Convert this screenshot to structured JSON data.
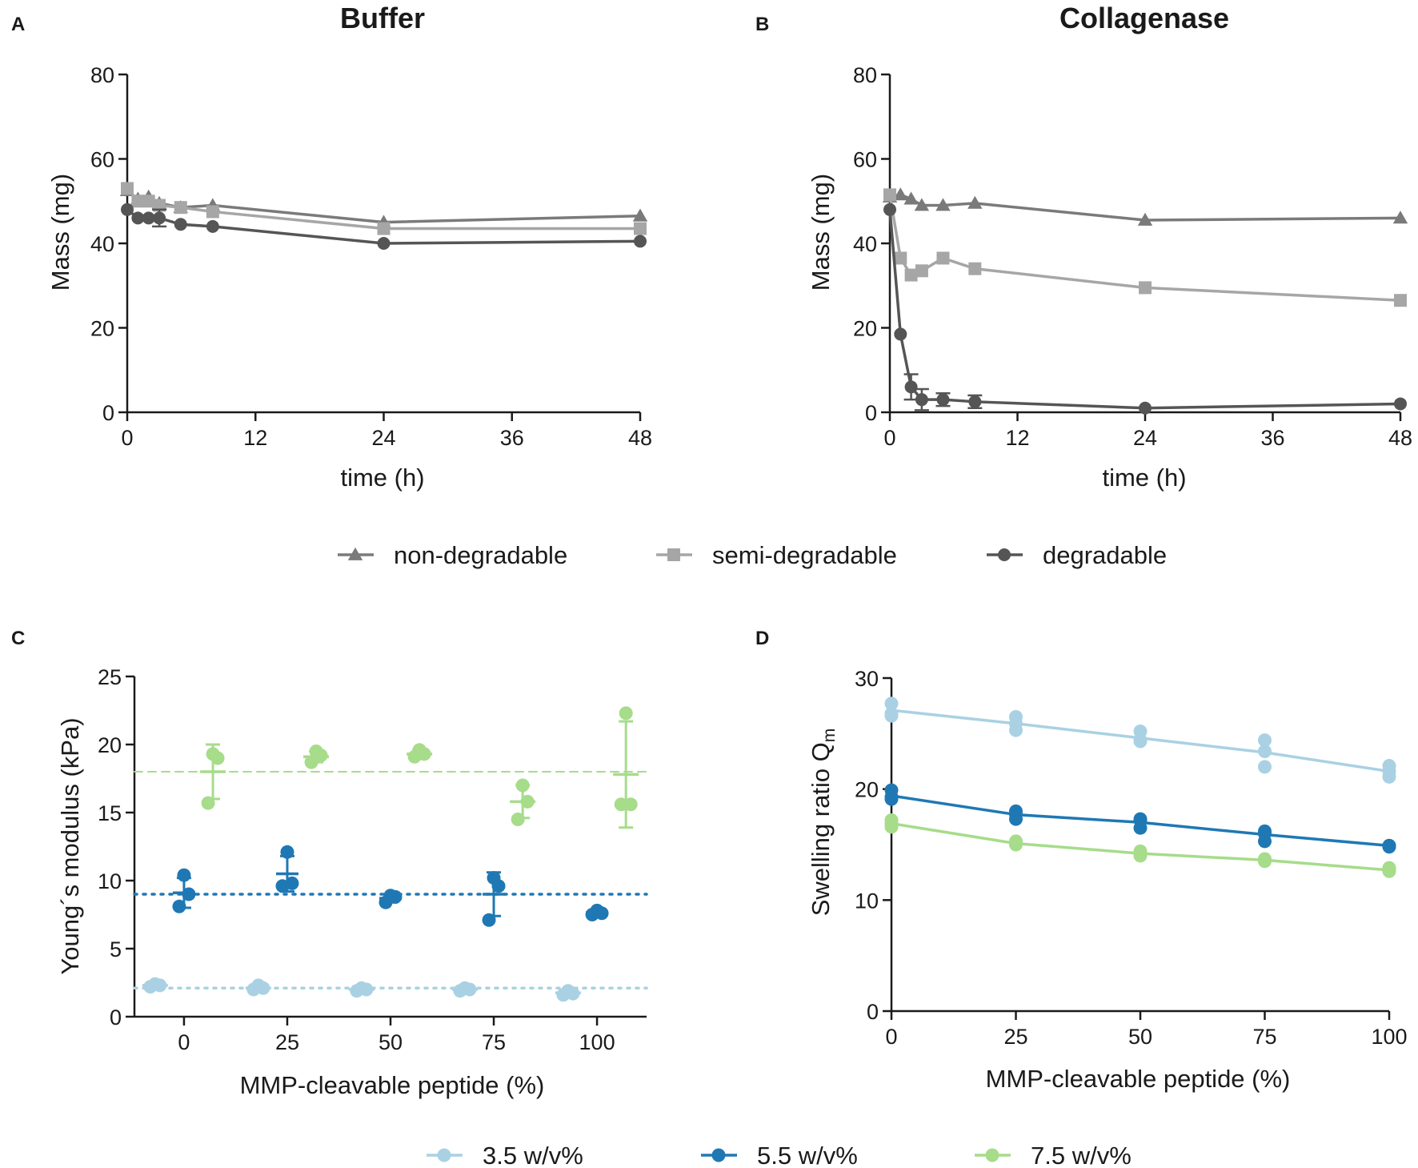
{
  "figure": {
    "legend_top": [
      {
        "label": "non-degradable",
        "color": "#7a7a7a",
        "marker": "triangle"
      },
      {
        "label": "semi-degradable",
        "color": "#a6a6a6",
        "marker": "square"
      },
      {
        "label": "degradable",
        "color": "#555555",
        "marker": "circle"
      }
    ],
    "legend_bottom": [
      {
        "label": "3.5 w/v%",
        "color": "#a9d1e3"
      },
      {
        "label": "5.5 w/v%",
        "color": "#1f78b4"
      },
      {
        "label": "7.5 w/v%",
        "color": "#a6dc8a"
      }
    ]
  },
  "chart_data": [
    {
      "panel": "A",
      "type": "line",
      "title": "Buffer",
      "xlabel": "time (h)",
      "ylabel": "Mass (mg)",
      "xlim": [
        0,
        48
      ],
      "ylim": [
        0,
        80
      ],
      "xticks": [
        0,
        12,
        24,
        36,
        48
      ],
      "yticks": [
        0,
        20,
        40,
        60,
        80
      ],
      "series": [
        {
          "name": "non-degradable",
          "color": "#7a7a7a",
          "marker": "triangle",
          "x": [
            0,
            1,
            2,
            3,
            5,
            8,
            24,
            48
          ],
          "y": [
            52.5,
            50.5,
            51,
            49.5,
            48.5,
            49,
            45,
            46.5
          ]
        },
        {
          "name": "semi-degradable",
          "color": "#a6a6a6",
          "marker": "square",
          "x": [
            0,
            1,
            2,
            3,
            5,
            8,
            24,
            48
          ],
          "y": [
            53,
            50,
            50,
            49,
            48.5,
            47.5,
            43.5,
            43.5
          ]
        },
        {
          "name": "degradable",
          "color": "#555555",
          "marker": "circle",
          "x": [
            0,
            1,
            2,
            3,
            5,
            8,
            24,
            48
          ],
          "y": [
            48,
            46,
            46,
            46,
            44.5,
            44,
            40,
            40.5
          ],
          "err": [
            0,
            0,
            0,
            2,
            0,
            0,
            0,
            0
          ]
        }
      ]
    },
    {
      "panel": "B",
      "type": "line",
      "title": "Collagenase",
      "xlabel": "time (h)",
      "ylabel": "Mass (mg)",
      "xlim": [
        0,
        48
      ],
      "ylim": [
        0,
        80
      ],
      "xticks": [
        0,
        12,
        24,
        36,
        48
      ],
      "yticks": [
        0,
        20,
        40,
        60,
        80
      ],
      "series": [
        {
          "name": "non-degradable",
          "color": "#7a7a7a",
          "marker": "triangle",
          "x": [
            0,
            1,
            2,
            3,
            5,
            8,
            24,
            48
          ],
          "y": [
            51,
            51.5,
            50.5,
            49,
            49,
            49.5,
            45.5,
            46
          ]
        },
        {
          "name": "semi-degradable",
          "color": "#a6a6a6",
          "marker": "square",
          "x": [
            0,
            1,
            2,
            3,
            5,
            8,
            24,
            48
          ],
          "y": [
            51.5,
            36.5,
            32.5,
            33.5,
            36.5,
            34,
            29.5,
            26.5
          ]
        },
        {
          "name": "degradable",
          "color": "#555555",
          "marker": "circle",
          "x": [
            0,
            1,
            2,
            3,
            5,
            8,
            24,
            48
          ],
          "y": [
            48,
            18.5,
            6,
            3,
            3,
            2.5,
            1,
            2
          ],
          "err": [
            0,
            0,
            3,
            2.5,
            1.5,
            1.5,
            0,
            0
          ]
        }
      ]
    },
    {
      "panel": "C",
      "type": "scatter",
      "xlabel": "MMP-cleavable peptide (%)",
      "ylabel": "Young´s modulus (kPa)",
      "xlim": [
        -12,
        112
      ],
      "ylim": [
        0,
        25
      ],
      "xticks": [
        0,
        25,
        50,
        75,
        100
      ],
      "yticks": [
        0,
        5,
        10,
        15,
        20,
        25
      ],
      "series": [
        {
          "name": "3.5 w/v%",
          "color": "#a9d1e3",
          "offset": -7,
          "ref_line": 2.1,
          "groups": [
            {
              "x": 0,
              "points": [
                2.2,
                2.3,
                2.4
              ],
              "mean": 2.3,
              "sd": 0.1
            },
            {
              "x": 25,
              "points": [
                2.0,
                2.1,
                2.3
              ],
              "mean": 2.1,
              "sd": 0.15
            },
            {
              "x": 50,
              "points": [
                1.9,
                2.0,
                2.1
              ],
              "mean": 2.0,
              "sd": 0.1
            },
            {
              "x": 75,
              "points": [
                1.9,
                2.0,
                2.1
              ],
              "mean": 2.0,
              "sd": 0.1
            },
            {
              "x": 100,
              "points": [
                1.6,
                1.7,
                1.9
              ],
              "mean": 1.75,
              "sd": 0.15
            }
          ]
        },
        {
          "name": "5.5 w/v%",
          "color": "#1f78b4",
          "offset": 0,
          "ref_line": 9.0,
          "groups": [
            {
              "x": 0,
              "points": [
                8.1,
                9.0,
                10.4
              ],
              "mean": 9.1,
              "sd": 1.1
            },
            {
              "x": 25,
              "points": [
                9.6,
                9.8,
                12.1
              ],
              "mean": 10.5,
              "sd": 1.3
            },
            {
              "x": 50,
              "points": [
                8.4,
                8.8,
                8.9
              ],
              "mean": 8.7,
              "sd": 0.3
            },
            {
              "x": 75,
              "points": [
                7.1,
                9.6,
                10.2
              ],
              "mean": 9.0,
              "sd": 1.6
            },
            {
              "x": 100,
              "points": [
                7.5,
                7.6,
                7.8
              ],
              "mean": 7.65,
              "sd": 0.15
            }
          ]
        },
        {
          "name": "7.5 w/v%",
          "color": "#a6dc8a",
          "offset": 7,
          "ref_line": 18.0,
          "groups": [
            {
              "x": 0,
              "points": [
                15.7,
                19.0,
                19.3
              ],
              "mean": 18.0,
              "sd": 2.0
            },
            {
              "x": 25,
              "points": [
                18.7,
                19.2,
                19.5
              ],
              "mean": 19.1,
              "sd": 0.4
            },
            {
              "x": 50,
              "points": [
                19.1,
                19.3,
                19.6
              ],
              "mean": 19.3,
              "sd": 0.3
            },
            {
              "x": 75,
              "points": [
                14.5,
                15.8,
                17.0
              ],
              "mean": 15.8,
              "sd": 1.2
            },
            {
              "x": 100,
              "points": [
                15.6,
                15.6,
                22.3
              ],
              "mean": 17.8,
              "sd": 3.9
            }
          ]
        }
      ]
    },
    {
      "panel": "D",
      "type": "line",
      "xlabel": "MMP-cleavable peptide (%)",
      "ylabel_main": "Swelling ratio Q",
      "ylabel_sub": "m",
      "xlim": [
        0,
        100
      ],
      "ylim": [
        0,
        30
      ],
      "xticks": [
        0,
        25,
        50,
        75,
        100
      ],
      "yticks": [
        0,
        10,
        20,
        30
      ],
      "series": [
        {
          "name": "3.5 w/v%",
          "color": "#a9d1e3",
          "x": [
            0,
            25,
            50,
            75,
            100
          ],
          "y": [
            27.1,
            25.9,
            24.6,
            23.3,
            21.6
          ],
          "points": [
            [
              27.7,
              26.8,
              26.6
            ],
            [
              26.5,
              25.3,
              25.9
            ],
            [
              25.2,
              24.3,
              24.4
            ],
            [
              24.4,
              22.0,
              23.4
            ],
            [
              22.1,
              21.1,
              21.6
            ]
          ]
        },
        {
          "name": "5.5 w/v%",
          "color": "#1f78b4",
          "x": [
            0,
            25,
            50,
            75,
            100
          ],
          "y": [
            19.4,
            17.7,
            17.0,
            15.9,
            14.9
          ],
          "points": [
            [
              19.9,
              19.1,
              19.3
            ],
            [
              18.0,
              17.3,
              17.7
            ],
            [
              17.3,
              16.5,
              17.2
            ],
            [
              16.2,
              15.3,
              16.0
            ],
            [
              14.9,
              14.9,
              14.8
            ]
          ]
        },
        {
          "name": "7.5 w/v%",
          "color": "#a6dc8a",
          "x": [
            0,
            25,
            50,
            75,
            100
          ],
          "y": [
            16.9,
            15.1,
            14.2,
            13.6,
            12.7
          ],
          "points": [
            [
              17.2,
              16.6,
              16.9
            ],
            [
              15.3,
              15.0,
              15.1
            ],
            [
              14.4,
              14.0,
              14.2
            ],
            [
              13.7,
              13.5,
              13.6
            ],
            [
              12.9,
              12.6,
              12.7
            ]
          ]
        }
      ]
    }
  ]
}
